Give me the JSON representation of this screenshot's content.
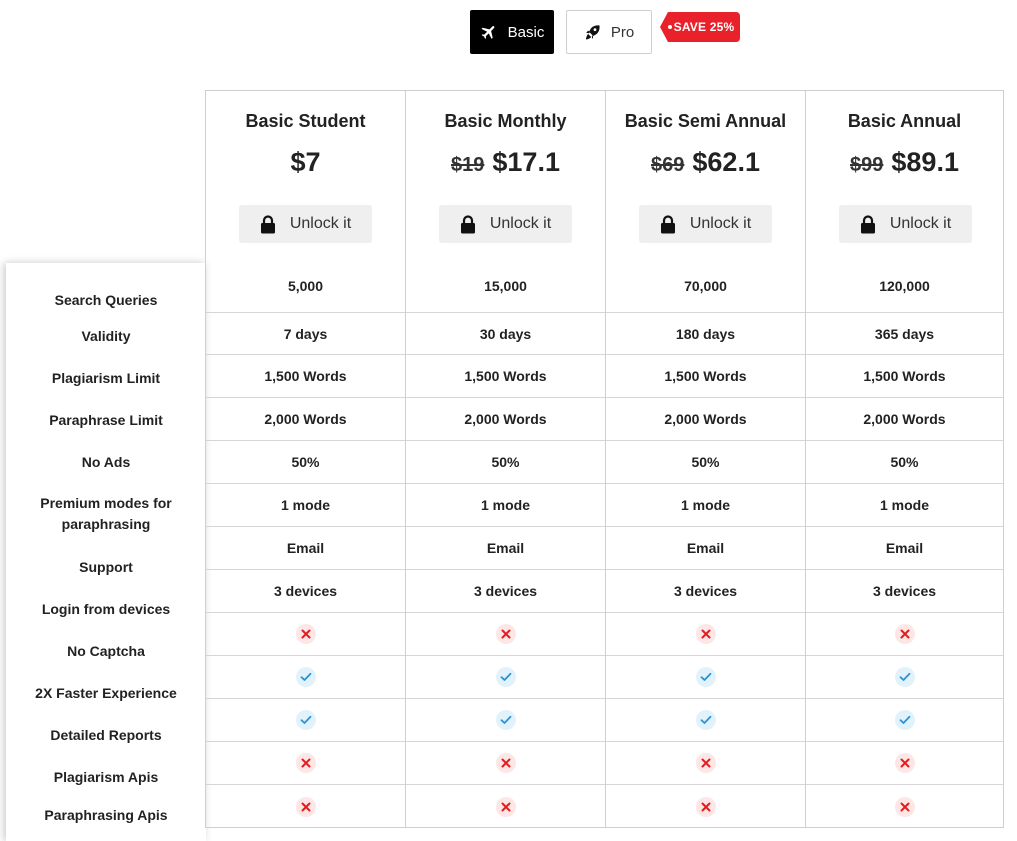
{
  "toggle": {
    "basic_label": "Basic",
    "pro_label": "Pro",
    "save_badge": "SAVE 25%",
    "active": "Basic"
  },
  "features": [
    "Search Queries",
    "Validity",
    "Plagiarism Limit",
    "Paraphrase Limit",
    "No Ads",
    "Premium modes for paraphrasing",
    "Support",
    "Login from devices",
    "No Captcha",
    "2X Faster Experience",
    "Detailed Reports",
    "Plagiarism Apis",
    "Paraphrasing Apis"
  ],
  "unlock_label": "Unlock it",
  "plans": [
    {
      "title": "Basic Student",
      "old_price": "",
      "price": "$7",
      "values": [
        "5,000",
        "7 days",
        "1,500 Words",
        "2,000 Words",
        "50%",
        "1 mode",
        "Email",
        "3 devices"
      ],
      "marks": [
        "x-icon",
        "check-icon",
        "check-icon",
        "x-icon",
        "x-icon"
      ]
    },
    {
      "title": "Basic Monthly",
      "old_price": "$19",
      "price": "$17.1",
      "values": [
        "15,000",
        "30 days",
        "1,500 Words",
        "2,000 Words",
        "50%",
        "1 mode",
        "Email",
        "3 devices"
      ],
      "marks": [
        "x-icon",
        "check-icon",
        "check-icon",
        "x-icon",
        "x-icon"
      ]
    },
    {
      "title": "Basic Semi Annual",
      "old_price": "$69",
      "price": "$62.1",
      "values": [
        "70,000",
        "180 days",
        "1,500 Words",
        "2,000 Words",
        "50%",
        "1 mode",
        "Email",
        "3 devices"
      ],
      "marks": [
        "x-icon",
        "check-icon",
        "check-icon",
        "x-icon",
        "x-icon"
      ]
    },
    {
      "title": "Basic Annual",
      "old_price": "$99",
      "price": "$89.1",
      "values": [
        "120,000",
        "365 days",
        "1,500 Words",
        "2,000 Words",
        "50%",
        "1 mode",
        "Email",
        "3 devices"
      ],
      "marks": [
        "x-icon",
        "check-icon",
        "check-icon",
        "x-icon",
        "x-icon"
      ]
    }
  ],
  "colors": {
    "active_toggle": "#000000",
    "badge": "#e8212b",
    "x_mark": "#e11d1d",
    "check_mark": "#2b93d6"
  }
}
